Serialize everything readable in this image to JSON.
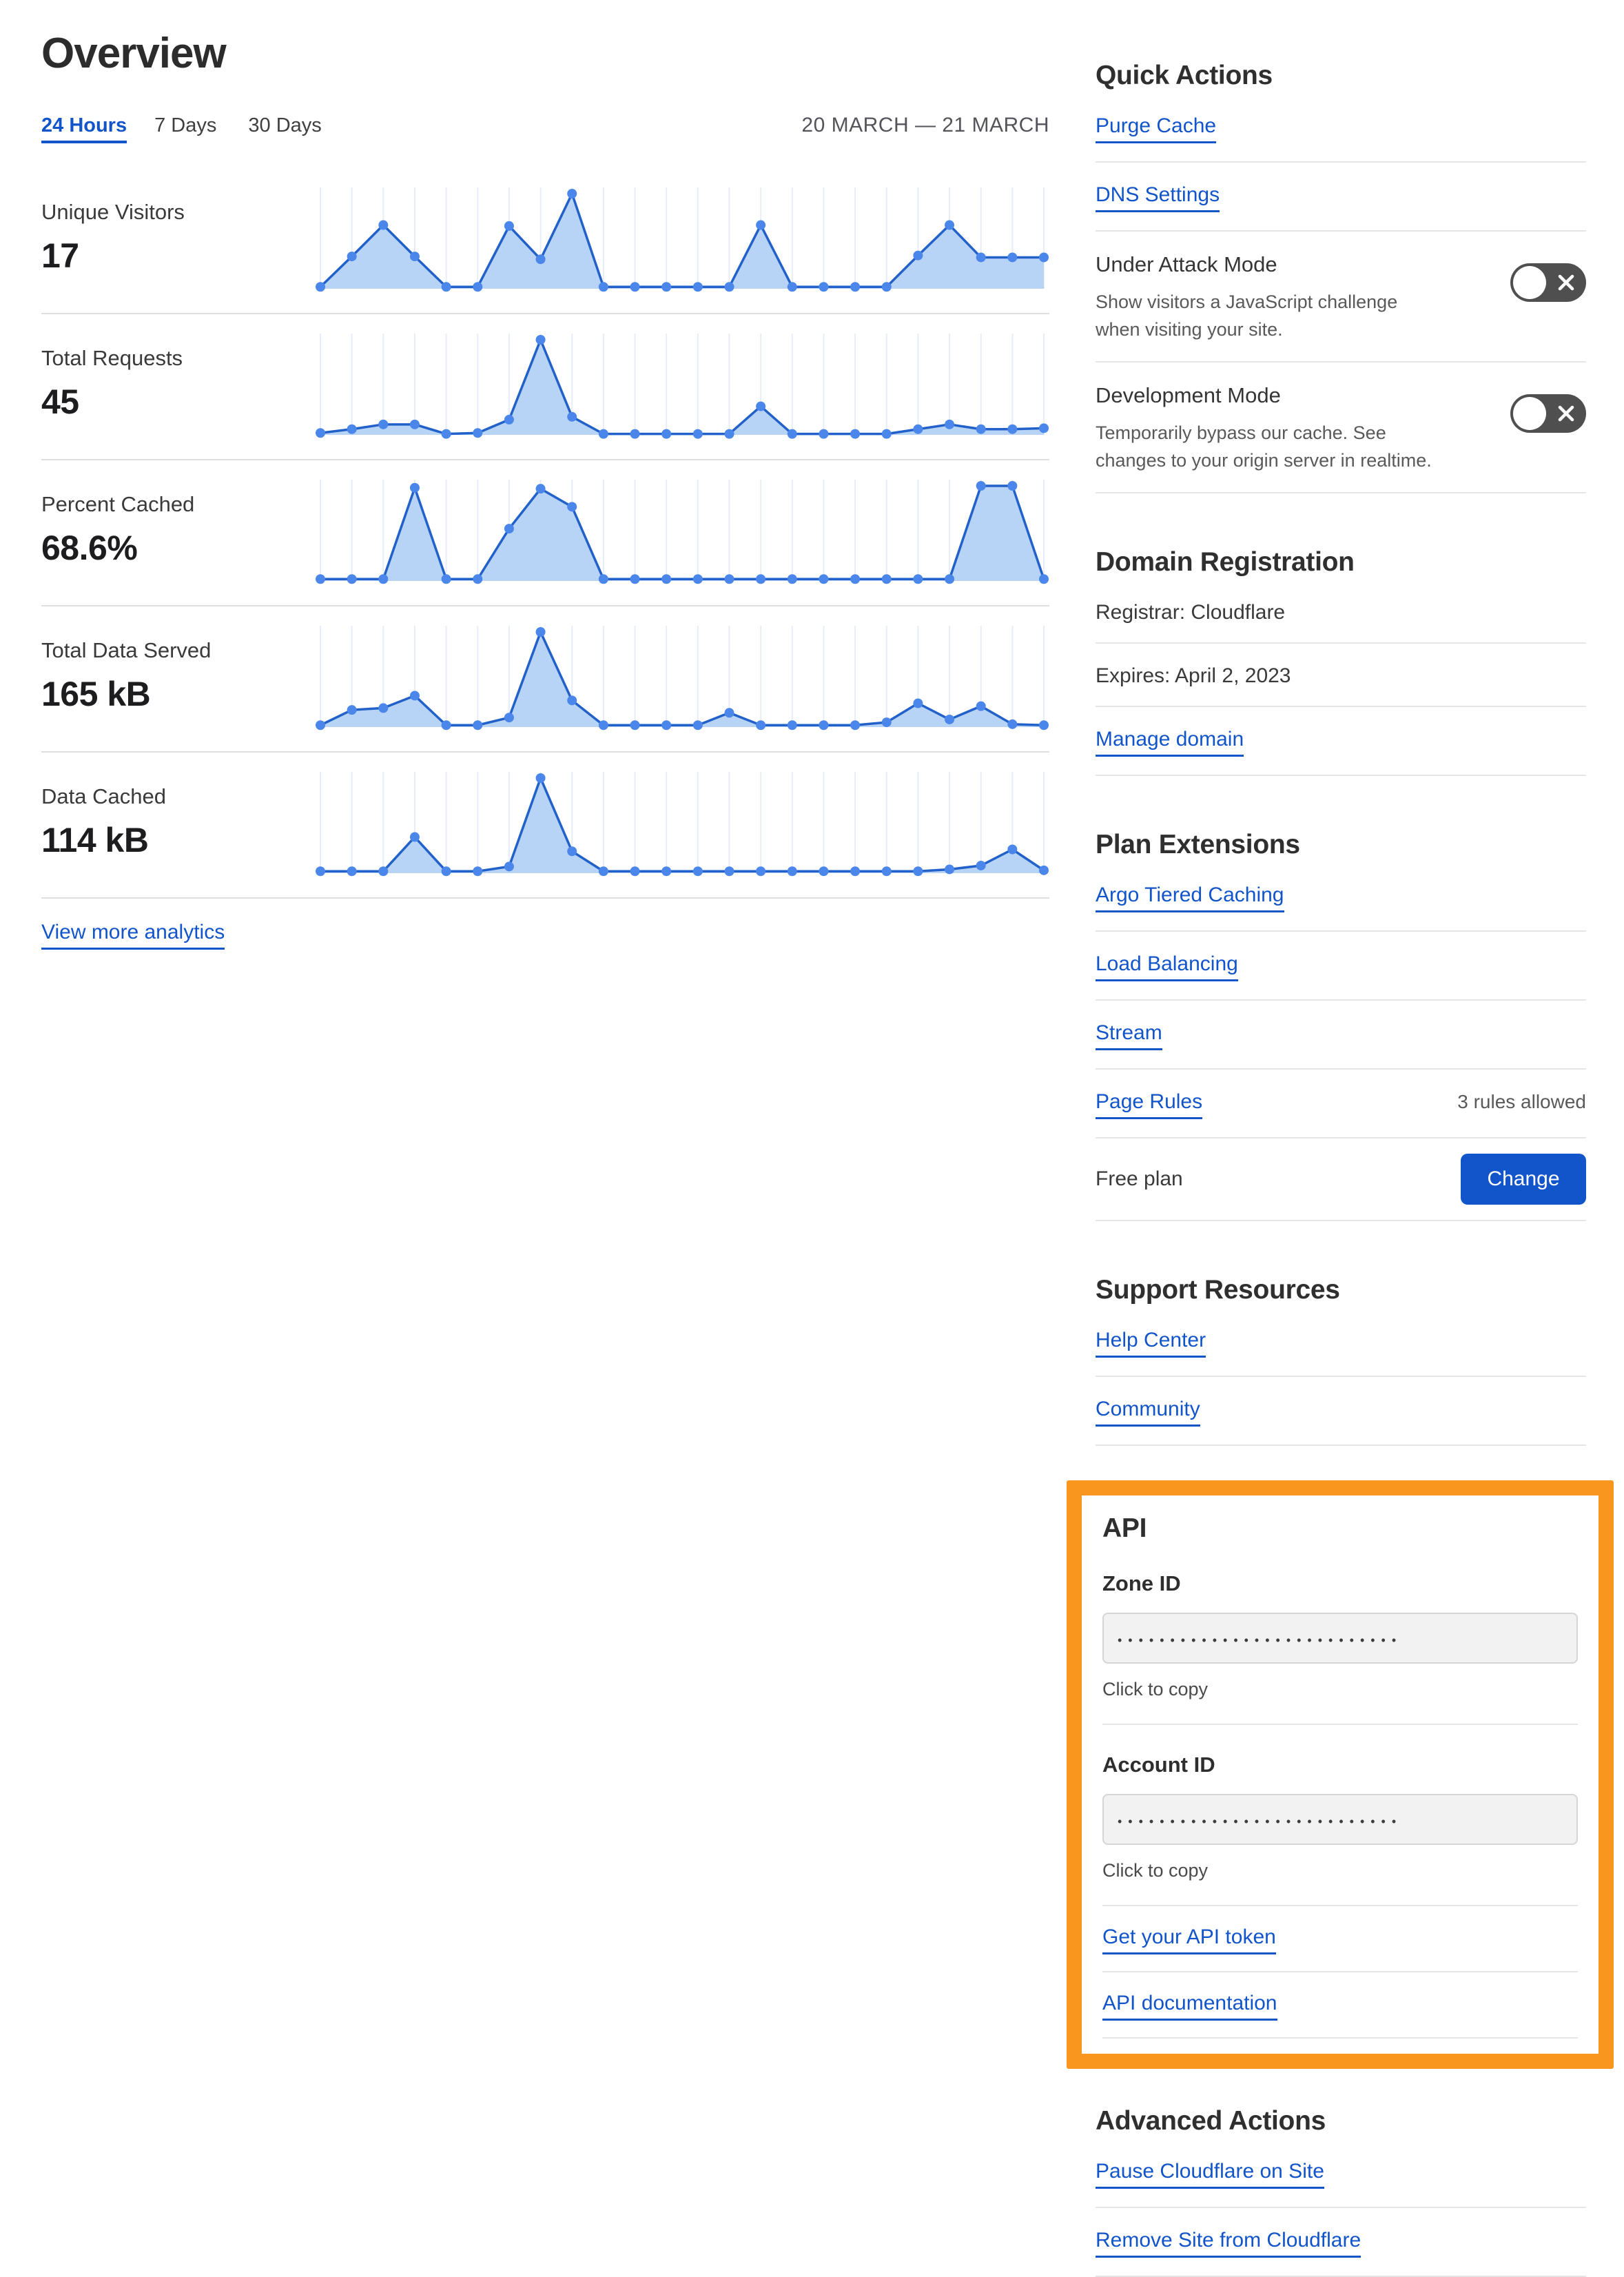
{
  "page": {
    "title": "Overview"
  },
  "tabs": {
    "items": [
      {
        "label": "24 Hours",
        "active": true
      },
      {
        "label": "7 Days",
        "active": false
      },
      {
        "label": "30 Days",
        "active": false
      }
    ],
    "date_range": "20 MARCH — 21 MARCH"
  },
  "metrics": [
    {
      "label": "Unique Visitors",
      "value": "17"
    },
    {
      "label": "Total Requests",
      "value": "45"
    },
    {
      "label": "Percent Cached",
      "value": "68.6%"
    },
    {
      "label": "Total Data Served",
      "value": "165 kB"
    },
    {
      "label": "Data Cached",
      "value": "114 kB"
    }
  ],
  "view_more_label": "View more analytics",
  "chart_data": [
    {
      "type": "area",
      "title": "Unique Visitors",
      "total": "17",
      "x_axis": "24 hourly points, 20 March — 21 March",
      "axes_hidden": true,
      "grid": "vertical-per-point",
      "values_norm": [
        0.02,
        0.34,
        0.67,
        0.34,
        0.02,
        0.02,
        0.66,
        0.31,
        1.0,
        0.02,
        0.02,
        0.02,
        0.02,
        0.02,
        0.67,
        0.02,
        0.02,
        0.02,
        0.02,
        0.35,
        0.67,
        0.33,
        0.33,
        0.33
      ]
    },
    {
      "type": "area",
      "title": "Total Requests",
      "total": "45",
      "x_axis": "24 hourly points, 20 March — 21 March",
      "axes_hidden": true,
      "grid": "vertical-per-point",
      "values_norm": [
        0.02,
        0.06,
        0.11,
        0.11,
        0.01,
        0.02,
        0.16,
        1.0,
        0.19,
        0.01,
        0.01,
        0.01,
        0.01,
        0.01,
        0.3,
        0.01,
        0.01,
        0.01,
        0.01,
        0.06,
        0.11,
        0.06,
        0.06,
        0.07
      ]
    },
    {
      "type": "area",
      "title": "Percent Cached",
      "total": "68.6%",
      "x_axis": "24 hourly points, 20 March — 21 March",
      "axes_hidden": true,
      "grid": "vertical-per-point",
      "values_norm": [
        0.02,
        0.02,
        0.02,
        0.98,
        0.02,
        0.02,
        0.55,
        0.97,
        0.78,
        0.02,
        0.02,
        0.02,
        0.02,
        0.02,
        0.02,
        0.02,
        0.02,
        0.02,
        0.02,
        0.02,
        0.02,
        1.0,
        1.0,
        0.02
      ]
    },
    {
      "type": "area",
      "title": "Total Data Served",
      "total": "165 kB",
      "x_axis": "24 hourly points, 20 March — 21 March",
      "axes_hidden": true,
      "grid": "vertical-per-point",
      "values_norm": [
        0.02,
        0.18,
        0.2,
        0.33,
        0.02,
        0.02,
        0.1,
        1.0,
        0.28,
        0.02,
        0.02,
        0.02,
        0.02,
        0.15,
        0.02,
        0.02,
        0.02,
        0.02,
        0.05,
        0.25,
        0.08,
        0.22,
        0.03,
        0.02
      ]
    },
    {
      "type": "area",
      "title": "Data Cached",
      "total": "114 kB",
      "x_axis": "24 hourly points, 20 March — 21 March",
      "axes_hidden": true,
      "grid": "vertical-per-point",
      "values_norm": [
        0.02,
        0.02,
        0.02,
        0.38,
        0.02,
        0.02,
        0.07,
        1.0,
        0.23,
        0.02,
        0.02,
        0.02,
        0.02,
        0.02,
        0.02,
        0.02,
        0.02,
        0.02,
        0.02,
        0.02,
        0.04,
        0.08,
        0.25,
        0.03
      ]
    }
  ],
  "quick_actions": {
    "heading": "Quick Actions",
    "links": [
      "Purge Cache",
      "DNS Settings"
    ],
    "toggles": [
      {
        "label": "Under Attack Mode",
        "desc": "Show visitors a JavaScript challenge when visiting your site.",
        "state": "off"
      },
      {
        "label": "Development Mode",
        "desc": "Temporarily bypass our cache. See changes to your origin server in realtime.",
        "state": "off"
      }
    ]
  },
  "domain_registration": {
    "heading": "Domain Registration",
    "registrar": "Registrar: Cloudflare",
    "expires": "Expires: April 2, 2023",
    "manage_label": "Manage domain"
  },
  "plan_extensions": {
    "heading": "Plan Extensions",
    "links": [
      "Argo Tiered Caching",
      "Load Balancing",
      "Stream"
    ],
    "page_rules": {
      "label": "Page Rules",
      "note": "3 rules allowed"
    },
    "plan": {
      "name": "Free plan",
      "button_label": "Change"
    }
  },
  "support": {
    "heading": "Support Resources",
    "links": [
      "Help Center",
      "Community"
    ]
  },
  "api": {
    "heading": "API",
    "zone_id_label": "Zone ID",
    "account_id_label": "Account ID",
    "masked_value": "•••••••••••••••••••••••••••",
    "click_to_copy": "Click to copy",
    "token_link": "Get your API token",
    "docs_link": "API documentation"
  },
  "advanced": {
    "heading": "Advanced Actions",
    "links": [
      "Pause Cloudflare on Site",
      "Remove Site from Cloudflare"
    ]
  },
  "colors": {
    "link_blue": "#1255cb",
    "button_blue": "#1255cb",
    "highlight_orange": "#f8961d",
    "chart_line": "#2161c9",
    "chart_fill": "#b7d3f6",
    "chart_dot": "#4b87ea",
    "chart_grid": "#e7edf8",
    "toggle_off_gray": "#4f4f4f"
  }
}
